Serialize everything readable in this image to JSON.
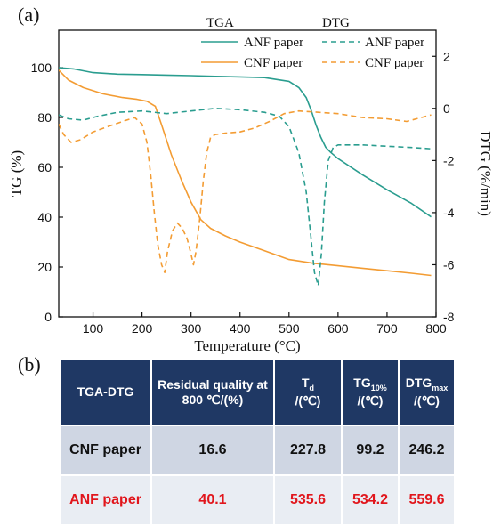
{
  "panel_a_label": "(a)",
  "panel_b_label": "(b)",
  "chart_data": {
    "type": "line",
    "xlabel": "Temperature (°C)",
    "ylabel_left": "TG (%)",
    "ylabel_right": "DTG (%/min)",
    "xlim": [
      30,
      800
    ],
    "ylim_left": [
      0,
      115
    ],
    "ylim_right": [
      -8,
      3
    ],
    "xticks": [
      100,
      200,
      300,
      400,
      500,
      600,
      700,
      800
    ],
    "yticks_left": [
      0,
      20,
      40,
      60,
      80,
      100
    ],
    "yticks_right": [
      2,
      0,
      -2,
      -4,
      -6,
      -8
    ],
    "legend_group_tga": "TGA",
    "legend_group_dtg": "DTG",
    "legend_position": "top",
    "series": [
      {
        "name": "ANF paper",
        "group": "TGA",
        "axis": "left",
        "color": "#2a9d8f",
        "style": "solid",
        "x": [
          30,
          60,
          100,
          150,
          200,
          250,
          300,
          350,
          400,
          450,
          500,
          520,
          535,
          545,
          555,
          565,
          575,
          585,
          600,
          650,
          700,
          750,
          790
        ],
        "y": [
          100,
          99.5,
          98,
          97.4,
          97.2,
          97,
          96.8,
          96.5,
          96.3,
          96,
          94.5,
          92,
          88,
          83,
          77,
          72,
          68,
          66,
          63.5,
          57,
          51,
          45.5,
          40.1
        ]
      },
      {
        "name": "CNF paper",
        "group": "TGA",
        "axis": "left",
        "color": "#f39c33",
        "style": "solid",
        "x": [
          30,
          50,
          80,
          120,
          160,
          190,
          210,
          227,
          240,
          260,
          280,
          300,
          320,
          340,
          370,
          400,
          450,
          500,
          550,
          600,
          650,
          700,
          750,
          790
        ],
        "y": [
          99,
          95,
          92,
          89.5,
          88,
          87.3,
          86.5,
          84.5,
          77,
          65,
          55,
          46,
          39,
          35.5,
          32.5,
          30,
          26.5,
          23,
          21.5,
          20.5,
          19.5,
          18.5,
          17.5,
          16.6
        ]
      },
      {
        "name": "ANF paper",
        "group": "DTG",
        "axis": "right",
        "color": "#2a9d8f",
        "style": "dashed",
        "x": [
          30,
          50,
          80,
          110,
          150,
          200,
          250,
          300,
          350,
          400,
          450,
          480,
          500,
          520,
          535,
          545,
          552,
          559.6,
          566,
          572,
          580,
          590,
          600,
          650,
          700,
          750,
          790
        ],
        "y": [
          -0.25,
          -0.4,
          -0.45,
          -0.3,
          -0.15,
          -0.1,
          -0.2,
          -0.1,
          0,
          -0.05,
          -0.15,
          -0.3,
          -0.7,
          -1.7,
          -3.2,
          -5,
          -6.3,
          -6.8,
          -5.6,
          -3.6,
          -2,
          -1.5,
          -1.4,
          -1.4,
          -1.45,
          -1.5,
          -1.55
        ]
      },
      {
        "name": "CNF paper",
        "group": "DTG",
        "axis": "right",
        "color": "#f39c33",
        "style": "dashed",
        "x": [
          30,
          40,
          55,
          75,
          100,
          130,
          160,
          185,
          200,
          210,
          218,
          225,
          232,
          240,
          246.2,
          252,
          262,
          272,
          282,
          292,
          300,
          305,
          310,
          318,
          325,
          332,
          340,
          350,
          370,
          400,
          430,
          460,
          490,
          520,
          560,
          600,
          650,
          700,
          740,
          790
        ],
        "y": [
          -0.6,
          -1,
          -1.3,
          -1.2,
          -0.9,
          -0.7,
          -0.5,
          -0.35,
          -0.6,
          -1.3,
          -2.6,
          -4,
          -5.2,
          -6,
          -6.3,
          -5.5,
          -4.7,
          -4.4,
          -4.6,
          -5,
          -5.6,
          -6,
          -5.5,
          -4.2,
          -2.8,
          -1.7,
          -1.1,
          -1,
          -0.95,
          -0.9,
          -0.75,
          -0.5,
          -0.2,
          -0.1,
          -0.15,
          -0.2,
          -0.35,
          -0.4,
          -0.5,
          -0.25
        ]
      }
    ]
  },
  "table": {
    "headers": [
      {
        "main": "TGA-DTG",
        "sub": "",
        "rest": ""
      },
      {
        "main": "Residual quality at 800 ℃/(%)",
        "sub": "",
        "rest": ""
      },
      {
        "main": "T",
        "sub": "d",
        "rest": "/(℃)"
      },
      {
        "main": "TG",
        "sub": "10%",
        "rest": "/(℃)"
      },
      {
        "main": "DTG",
        "sub": "max",
        "rest": "/(℃)"
      }
    ],
    "rows": [
      {
        "name": "CNF paper",
        "cells": [
          "16.6",
          "227.8",
          "99.2",
          "246.2"
        ]
      },
      {
        "name": "ANF paper",
        "cells": [
          "40.1",
          "535.6",
          "534.2",
          "559.6"
        ]
      }
    ]
  }
}
